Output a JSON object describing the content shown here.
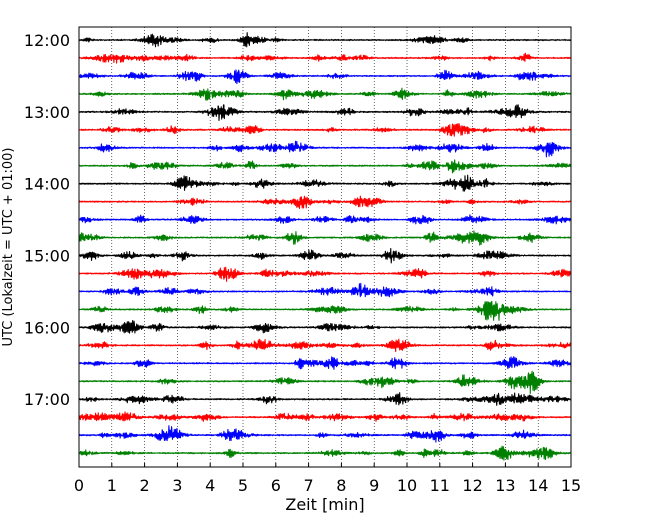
{
  "chart_data": {
    "type": "line",
    "title": "",
    "xlabel": "Zeit  [min]",
    "ylabel": "UTC (Lokalzeit = UTC + 01:00)",
    "xlim": [
      0,
      15
    ],
    "x_ticks": [
      0,
      1,
      2,
      3,
      4,
      5,
      6,
      7,
      8,
      9,
      10,
      11,
      12,
      13,
      14,
      15
    ],
    "x_tick_labels": [
      "0",
      "1",
      "2",
      "3",
      "4",
      "5",
      "6",
      "7",
      "8",
      "9",
      "10",
      "11",
      "12",
      "13",
      "14",
      "15"
    ],
    "y_tick_labels": [
      "12:00",
      "13:00",
      "14:00",
      "15:00",
      "16:00",
      "17:00"
    ],
    "trace_colors": [
      "#000000",
      "#ff0000",
      "#0000ff",
      "#008000"
    ],
    "traces": [
      {
        "start": "12:00",
        "color_index": 0
      },
      {
        "start": "12:15",
        "color_index": 1
      },
      {
        "start": "12:30",
        "color_index": 2
      },
      {
        "start": "12:45",
        "color_index": 3
      },
      {
        "start": "13:00",
        "color_index": 0
      },
      {
        "start": "13:15",
        "color_index": 1
      },
      {
        "start": "13:30",
        "color_index": 2
      },
      {
        "start": "13:45",
        "color_index": 3
      },
      {
        "start": "14:00",
        "color_index": 0
      },
      {
        "start": "14:15",
        "color_index": 1
      },
      {
        "start": "14:30",
        "color_index": 2
      },
      {
        "start": "14:45",
        "color_index": 3
      },
      {
        "start": "15:00",
        "color_index": 0
      },
      {
        "start": "15:15",
        "color_index": 1
      },
      {
        "start": "15:30",
        "color_index": 2
      },
      {
        "start": "15:45",
        "color_index": 3
      },
      {
        "start": "16:00",
        "color_index": 0
      },
      {
        "start": "16:15",
        "color_index": 1
      },
      {
        "start": "16:30",
        "color_index": 2
      },
      {
        "start": "16:45",
        "color_index": 3
      },
      {
        "start": "17:00",
        "color_index": 0
      },
      {
        "start": "17:15",
        "color_index": 1
      },
      {
        "start": "17:30",
        "color_index": 2
      },
      {
        "start": "17:45",
        "color_index": 3
      }
    ],
    "grid": "vertical dotted lines at each minute",
    "legend": "none"
  }
}
